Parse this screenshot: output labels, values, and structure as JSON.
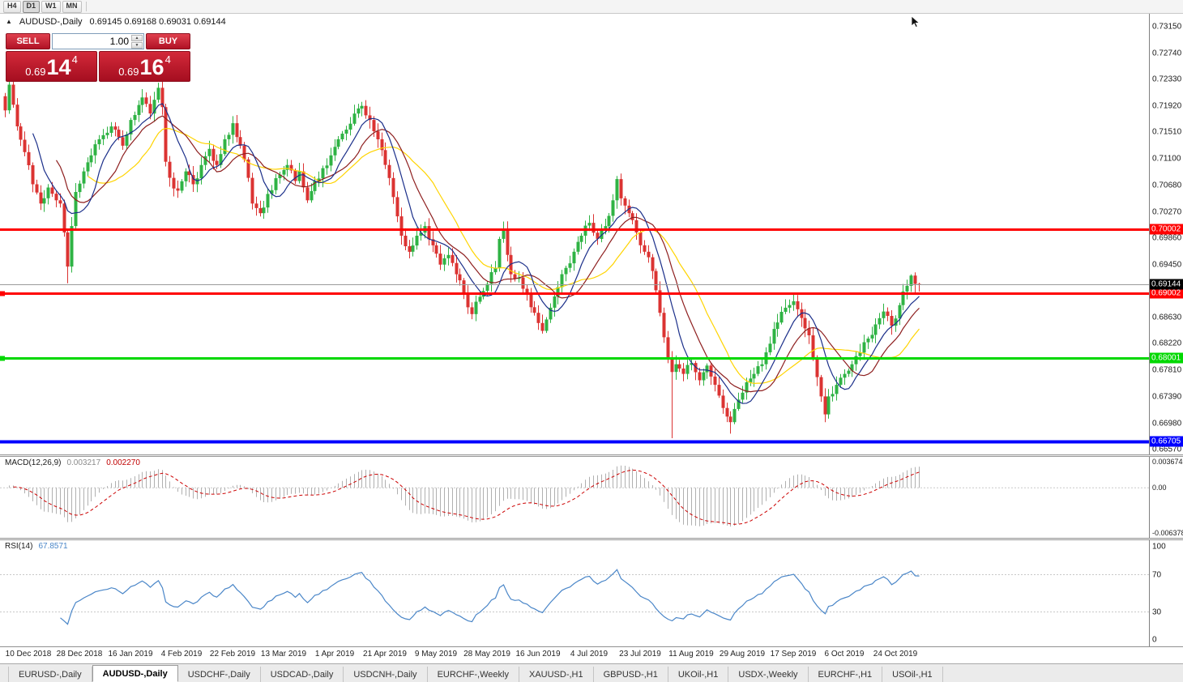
{
  "colors": {
    "up": "#2fb344",
    "down": "#db3332",
    "accent_red": "#c01d32"
  },
  "toolbar": {
    "buttons": [
      "H4",
      "D1",
      "W1",
      "MN"
    ],
    "active": "D1"
  },
  "chart_header": {
    "symbol": "AUDUSD-,Daily",
    "ohlc": "0.69145 0.69168 0.69031 0.69144"
  },
  "trade_panel": {
    "sell_label": "SELL",
    "buy_label": "BUY",
    "volume": "1.00",
    "sell_price": {
      "prefix": "0.69",
      "big": "14",
      "sup": "4"
    },
    "buy_price": {
      "prefix": "0.69",
      "big": "16",
      "sup": "4"
    }
  },
  "tabs": {
    "active_index": 1,
    "items": [
      "EURUSD-,Daily",
      "AUDUSD-,Daily",
      "USDCHF-,Daily",
      "USDCAD-,Daily",
      "USDCNH-,Daily",
      "EURCHF-,Weekly",
      "XAUUSD-,H1",
      "GBPUSD-,H1",
      "UKOil-,H1",
      "USDX-,Weekly",
      "EURCHF-,H1",
      "USOil-,H1"
    ]
  },
  "chart_data": {
    "type": "candlestick",
    "symbol": "AUDUSD-",
    "timeframe": "Daily",
    "ohlc_current": {
      "open": "0.69145",
      "high": "0.69168",
      "low": "0.69031",
      "close": "0.69144"
    },
    "bars": 234,
    "price_axis": {
      "top": 0.73352,
      "bottom": 0.66498,
      "tick_labels": [
        "0.73150",
        "0.72740",
        "0.72330",
        "0.71920",
        "0.71510",
        "0.71100",
        "0.70680",
        "0.70270",
        "0.69860",
        "0.69450",
        "0.69040",
        "0.68630",
        "0.68220",
        "0.67810",
        "0.67390",
        "0.66980",
        "0.66570"
      ]
    },
    "close_path": [
      [
        0,
        0.7185
      ],
      [
        1,
        0.7225
      ],
      [
        3,
        0.716
      ],
      [
        5,
        0.712
      ],
      [
        7,
        0.707
      ],
      [
        9,
        0.704
      ],
      [
        11,
        0.7065
      ],
      [
        13,
        0.7045
      ],
      [
        14,
        0.704
      ],
      [
        15,
        0.6995
      ],
      [
        16,
        0.6942
      ],
      [
        17,
        0.7005
      ],
      [
        18,
        0.7058
      ],
      [
        20,
        0.709
      ],
      [
        22,
        0.7115
      ],
      [
        24,
        0.714
      ],
      [
        27,
        0.716
      ],
      [
        30,
        0.713
      ],
      [
        32,
        0.717
      ],
      [
        35,
        0.7205
      ],
      [
        37,
        0.718
      ],
      [
        39,
        0.722
      ],
      [
        40,
        0.719
      ],
      [
        41,
        0.7105
      ],
      [
        42,
        0.708
      ],
      [
        44,
        0.706
      ],
      [
        46,
        0.709
      ],
      [
        48,
        0.707
      ],
      [
        50,
        0.71
      ],
      [
        52,
        0.7125
      ],
      [
        54,
        0.71
      ],
      [
        56,
        0.714
      ],
      [
        58,
        0.7165
      ],
      [
        60,
        0.713
      ],
      [
        62,
        0.708
      ],
      [
        63,
        0.704
      ],
      [
        65,
        0.7025
      ],
      [
        67,
        0.7055
      ],
      [
        70,
        0.7085
      ],
      [
        72,
        0.71
      ],
      [
        74,
        0.7075
      ],
      [
        75,
        0.709
      ],
      [
        77,
        0.7045
      ],
      [
        79,
        0.7075
      ],
      [
        81,
        0.7095
      ],
      [
        83,
        0.7115
      ],
      [
        85,
        0.714
      ],
      [
        87,
        0.7155
      ],
      [
        89,
        0.718
      ],
      [
        91,
        0.7192
      ],
      [
        93,
        0.717
      ],
      [
        95,
        0.714
      ],
      [
        97,
        0.71
      ],
      [
        99,
        0.705
      ],
      [
        101,
        0.699
      ],
      [
        103,
        0.6965
      ],
      [
        105,
        0.699
      ],
      [
        107,
        0.7005
      ],
      [
        109,
        0.6975
      ],
      [
        111,
        0.6945
      ],
      [
        113,
        0.696
      ],
      [
        115,
        0.693
      ],
      [
        117,
        0.69
      ],
      [
        119,
        0.6868
      ],
      [
        121,
        0.6895
      ],
      [
        123,
        0.6915
      ],
      [
        125,
        0.694
      ],
      [
        126,
        0.6985
      ],
      [
        127,
        0.7
      ],
      [
        128,
        0.696
      ],
      [
        129,
        0.693
      ],
      [
        131,
        0.6925
      ],
      [
        133,
        0.69
      ],
      [
        135,
        0.687
      ],
      [
        137,
        0.6842
      ],
      [
        139,
        0.6878
      ],
      [
        141,
        0.691
      ],
      [
        143,
        0.694
      ],
      [
        145,
        0.6965
      ],
      [
        147,
        0.699
      ],
      [
        149,
        0.701
      ],
      [
        151,
        0.6985
      ],
      [
        153,
        0.7005
      ],
      [
        155,
        0.7045
      ],
      [
        156,
        0.7078
      ],
      [
        157,
        0.7048
      ],
      [
        159,
        0.7025
      ],
      [
        161,
        0.6995
      ],
      [
        163,
        0.6965
      ],
      [
        165,
        0.6935
      ],
      [
        166,
        0.6905
      ],
      [
        167,
        0.687
      ],
      [
        168,
        0.6832
      ],
      [
        169,
        0.68
      ],
      [
        170,
        0.6778
      ],
      [
        171,
        0.679
      ],
      [
        173,
        0.6775
      ],
      [
        175,
        0.6792
      ],
      [
        177,
        0.6765
      ],
      [
        179,
        0.6788
      ],
      [
        181,
        0.6758
      ],
      [
        183,
        0.6722
      ],
      [
        185,
        0.67
      ],
      [
        187,
        0.6735
      ],
      [
        189,
        0.6762
      ],
      [
        191,
        0.6775
      ],
      [
        193,
        0.679
      ],
      [
        195,
        0.6822
      ],
      [
        197,
        0.6855
      ],
      [
        199,
        0.6878
      ],
      [
        201,
        0.6888
      ],
      [
        203,
        0.6862
      ],
      [
        205,
        0.6835
      ],
      [
        206,
        0.68
      ],
      [
        207,
        0.677
      ],
      [
        208,
        0.674
      ],
      [
        209,
        0.6712
      ],
      [
        210,
        0.674
      ],
      [
        212,
        0.6758
      ],
      [
        214,
        0.6775
      ],
      [
        216,
        0.679
      ],
      [
        218,
        0.6808
      ],
      [
        220,
        0.683
      ],
      [
        222,
        0.6852
      ],
      [
        224,
        0.6872
      ],
      [
        226,
        0.685
      ],
      [
        228,
        0.6882
      ],
      [
        230,
        0.6912
      ],
      [
        231,
        0.6928
      ],
      [
        232,
        0.6915
      ],
      [
        233,
        0.69144
      ]
    ],
    "wick_lows": {
      "16": 0.6916,
      "170": 0.6675,
      "185": 0.6682,
      "209": 0.67,
      "233": 0.69031
    },
    "wick_highs": {
      "16": 0.7,
      "127": 0.7012,
      "156": 0.7083,
      "231": 0.693,
      "233": 0.69168
    },
    "moving_averages": [
      {
        "name": "slow",
        "period": 22,
        "color": "#ffd400"
      },
      {
        "name": "medium",
        "period": 14,
        "color": "#8e1f1f"
      },
      {
        "name": "fast",
        "period": 8,
        "color": "#1b2f8a"
      }
    ],
    "hlines": [
      {
        "price": 0.70002,
        "label": "0.70002",
        "color": "#ff0000",
        "thickness": 3,
        "handle": false
      },
      {
        "price": 0.69002,
        "label": "0.69002",
        "color": "#ff0000",
        "thickness": 3,
        "handle": true
      },
      {
        "price": 0.68001,
        "label": "0.68001",
        "color": "#00d800",
        "thickness": 3,
        "handle": true
      },
      {
        "price": 0.66705,
        "label": "0.66705",
        "color": "#0000ff",
        "thickness": 4,
        "handle": false
      }
    ],
    "bid_line": {
      "price": 0.69144,
      "label": "0.69144",
      "line_color": "#9a9a9a",
      "badge_bg": "#000000"
    },
    "macd": {
      "label": "MACD(12,26,9)",
      "value_main": "0.003217",
      "value_signal": "0.002270",
      "fast": 12,
      "slow": 26,
      "signal": 9,
      "hist_color": "#b0b0b0",
      "signal_color": "#cc0000",
      "axis": {
        "max": 0.003674,
        "min": -0.006378,
        "labels": [
          "0.003674",
          "0.00",
          "-0.006378"
        ]
      }
    },
    "rsi": {
      "label": "RSI(14)",
      "value": "67.8571",
      "period": 14,
      "color": "#4a86c8",
      "levels": [
        70,
        30
      ],
      "axis_labels": [
        "100",
        "70",
        "30",
        "0"
      ]
    },
    "dates": [
      "10 Dec 2018",
      "28 Dec 2018",
      "16 Jan 2019",
      "4 Feb 2019",
      "22 Feb 2019",
      "13 Mar 2019",
      "1 Apr 2019",
      "21 Apr 2019",
      "9 May 2019",
      "28 May 2019",
      "16 Jun 2019",
      "4 Jul 2019",
      "23 Jul 2019",
      "11 Aug 2019",
      "29 Aug 2019",
      "17 Sep 2019",
      "6 Oct 2019",
      "24 Oct 2019"
    ],
    "date_first_bar": 6,
    "date_bar_step": 13
  }
}
